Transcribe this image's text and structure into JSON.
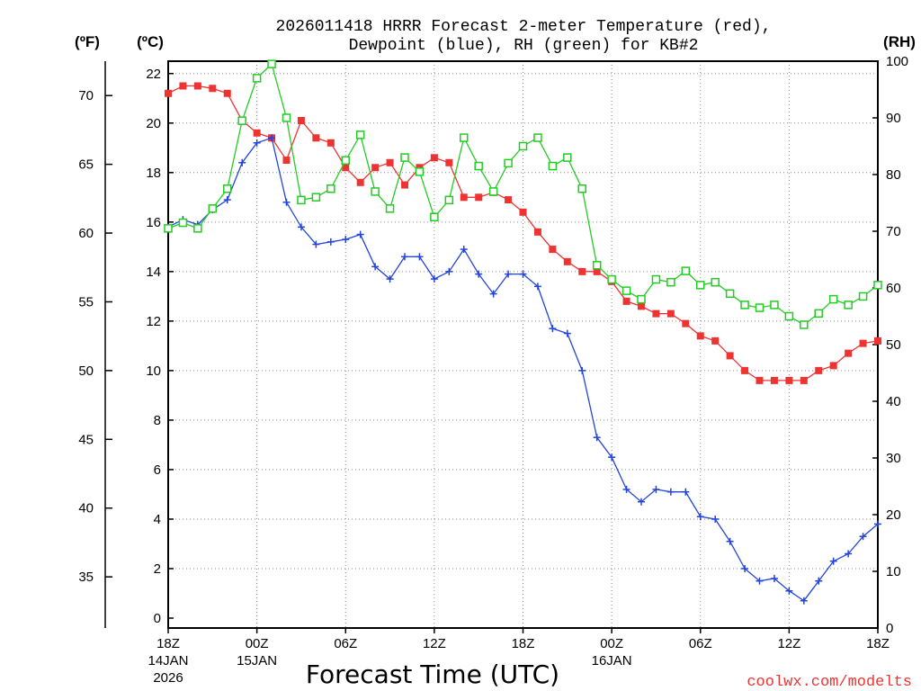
{
  "chart_data": {
    "type": "line",
    "title_line1": "2026011418 HRRR Forecast 2-meter Temperature (red),",
    "title_line2": "Dewpoint (blue), RH (green) for KB#2",
    "xlabel": "Forecast Time (UTC)",
    "credit": "coolwx.com/modelts",
    "unit_f": "(ºF)",
    "unit_c": "(ºC)",
    "unit_rh": "(RH)",
    "xlim": [
      0,
      48
    ],
    "ylim_c": [
      -0.4,
      22.5
    ],
    "ylim_rh": [
      0,
      100
    ],
    "c_ticks": [
      "0",
      "2",
      "4",
      "6",
      "8",
      "10",
      "12",
      "14",
      "16",
      "18",
      "20",
      "22"
    ],
    "f_ticks": [
      "35",
      "40",
      "45",
      "50",
      "55",
      "60",
      "65",
      "70"
    ],
    "rh_ticks": [
      "0",
      "10",
      "20",
      "30",
      "40",
      "50",
      "60",
      "70",
      "80",
      "90",
      "100"
    ],
    "x_ticks": [
      {
        "h": 0,
        "label": "18Z",
        "sub1": "14JAN",
        "sub2": "2026"
      },
      {
        "h": 6,
        "label": "00Z",
        "sub1": "15JAN",
        "sub2": ""
      },
      {
        "h": 12,
        "label": "06Z",
        "sub1": "",
        "sub2": ""
      },
      {
        "h": 18,
        "label": "12Z",
        "sub1": "",
        "sub2": ""
      },
      {
        "h": 24,
        "label": "18Z",
        "sub1": "",
        "sub2": ""
      },
      {
        "h": 30,
        "label": "00Z",
        "sub1": "16JAN",
        "sub2": ""
      },
      {
        "h": 36,
        "label": "06Z",
        "sub1": "",
        "sub2": ""
      },
      {
        "h": 42,
        "label": "12Z",
        "sub1": "",
        "sub2": ""
      },
      {
        "h": 48,
        "label": "18Z",
        "sub1": "",
        "sub2": ""
      }
    ],
    "series": [
      {
        "name": "Temperature (°C)",
        "color": "#ee3333",
        "marker": "filled-square",
        "axis": "celsius",
        "values": [
          21.2,
          21.5,
          21.5,
          21.4,
          21.2,
          20.1,
          19.6,
          19.4,
          18.5,
          20.1,
          19.4,
          19.2,
          18.2,
          17.6,
          18.2,
          18.4,
          17.5,
          18.2,
          18.6,
          18.4,
          17.0,
          17.0,
          17.2,
          16.9,
          16.4,
          15.6,
          14.9,
          14.4,
          14.0,
          14.0,
          13.6,
          12.8,
          12.6,
          12.3,
          12.3,
          11.9,
          11.4,
          11.2,
          10.6,
          10.0,
          9.6,
          9.6,
          9.6,
          9.6,
          10.0,
          10.2,
          10.7,
          11.1,
          11.2
        ]
      },
      {
        "name": "Dewpoint (°C)",
        "color": "#2244dd",
        "marker": "plus",
        "axis": "celsius",
        "values": [
          15.8,
          16.1,
          15.9,
          16.5,
          16.9,
          18.4,
          19.2,
          19.4,
          16.8,
          15.8,
          15.1,
          15.2,
          15.3,
          15.5,
          14.2,
          13.7,
          14.6,
          14.6,
          13.7,
          14.0,
          14.9,
          13.9,
          13.1,
          13.9,
          13.9,
          13.4,
          11.7,
          11.5,
          10.0,
          7.3,
          6.5,
          5.2,
          4.7,
          5.2,
          5.1,
          5.1,
          4.1,
          4.0,
          3.1,
          2.0,
          1.5,
          1.6,
          1.1,
          0.7,
          1.5,
          2.3,
          2.6,
          3.3,
          3.8
        ]
      },
      {
        "name": "Relative Humidity (%)",
        "color": "#22cc22",
        "marker": "open-square",
        "axis": "rh",
        "values": [
          70.5,
          71.5,
          70.5,
          74,
          77.5,
          89.5,
          97,
          99.5,
          90,
          75.5,
          76,
          77.5,
          82.5,
          87,
          77,
          74,
          83,
          80.5,
          72.5,
          75.5,
          86.5,
          81.5,
          77,
          82,
          85,
          86.5,
          81.5,
          83,
          77.5,
          64,
          61.5,
          59.5,
          58,
          61.5,
          61,
          63,
          60.5,
          61,
          59,
          57,
          56.5,
          57,
          55,
          53.5,
          55.5,
          58,
          57,
          58.5,
          60.5
        ]
      }
    ]
  }
}
